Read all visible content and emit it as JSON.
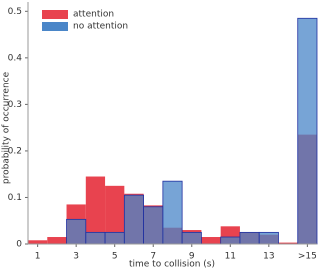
{
  "chart_data": {
    "type": "histogram",
    "xlabel": "time to collision (s)",
    "ylabel": "probability of occurrence",
    "bins": [
      0.5,
      1.5,
      2.5,
      3.5,
      4.5,
      5.5,
      6.5,
      7.5,
      8.5,
      9.5,
      10.5,
      11.5,
      12.5,
      13.5,
      14.5,
      15.5
    ],
    "series": [
      {
        "name": "attention",
        "color": "#e8434f",
        "values": [
          0.008,
          0.015,
          0.085,
          0.145,
          0.125,
          0.108,
          0.083,
          0.035,
          0.03,
          0.015,
          0.038,
          0.025,
          0.02,
          0.003,
          0.235
        ]
      },
      {
        "name": "no attention",
        "color": "#4a86c8",
        "values": [
          0,
          0,
          0.053,
          0.025,
          0.025,
          0.105,
          0.08,
          0.135,
          0.025,
          0,
          0.015,
          0.025,
          0.025,
          0,
          0.485
        ]
      }
    ],
    "xlim": [
      0.5,
      15.5
    ],
    "ylim": [
      0,
      0.52
    ],
    "xticks": [
      1,
      3,
      5,
      7,
      9,
      11,
      13,
      {
        "value": 15,
        "label": ">15"
      }
    ],
    "yticks": [
      0,
      0.1,
      0.2,
      0.3,
      0.4,
      0.5
    ],
    "legend": "upper-left"
  }
}
